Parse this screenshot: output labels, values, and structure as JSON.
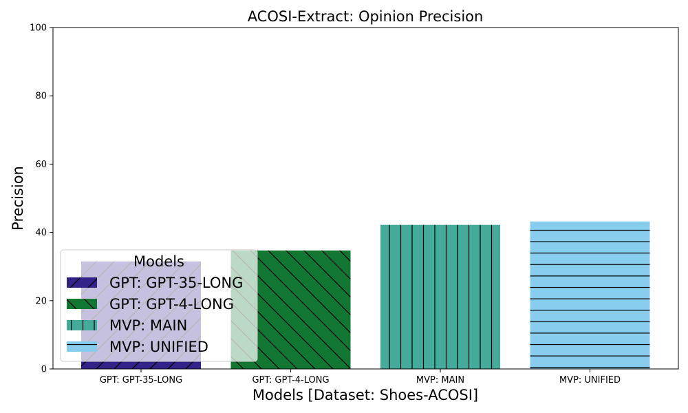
{
  "chart_data": {
    "type": "bar",
    "title": "ACOSI-Extract: Opinion Precision",
    "xlabel": "Models [Dataset: Shoes-ACOSI]",
    "ylabel": "Precision",
    "ylim": [
      0,
      100
    ],
    "yticks": [
      0,
      20,
      40,
      60,
      80,
      100
    ],
    "categories": [
      "GPT: GPT-35-LONG",
      "GPT: GPT-4-LONG",
      "MVP: MAIN",
      "MVP: UNIFIED"
    ],
    "values": [
      31.5,
      34.7,
      42.2,
      43.2
    ],
    "colors": [
      "#332288",
      "#117733",
      "#44aa99",
      "#88ccee"
    ],
    "hatches": [
      "diagonal-up",
      "diagonal-down",
      "vertical",
      "horizontal"
    ],
    "legend": {
      "title": "Models",
      "placement": "lower-left",
      "entries": [
        "GPT: GPT-35-LONG",
        "GPT: GPT-4-LONG",
        "MVP: MAIN",
        "MVP: UNIFIED"
      ]
    },
    "grid": false
  }
}
